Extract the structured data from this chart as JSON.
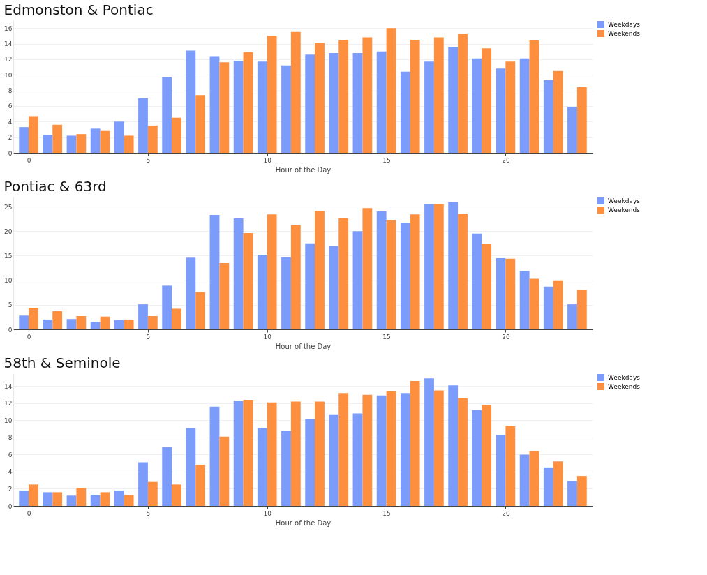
{
  "chart_data": [
    {
      "type": "bar",
      "title": "Edmonston & Pontiac",
      "xlabel": "Hour of the Day",
      "x": [
        0,
        1,
        2,
        3,
        4,
        5,
        6,
        7,
        8,
        9,
        10,
        11,
        12,
        13,
        14,
        15,
        16,
        17,
        18,
        19,
        20,
        21,
        22,
        23
      ],
      "xlim": [
        -0.5,
        23.5
      ],
      "xticks": [
        0,
        5,
        10,
        15,
        20
      ],
      "ylim": [
        0,
        17
      ],
      "yticks": [
        0,
        2,
        4,
        6,
        8,
        10,
        12,
        14,
        16
      ],
      "grid": "y",
      "legend": "top right",
      "series": [
        {
          "name": "Weekdays",
          "color": "#7b9cfb",
          "values": [
            3.3,
            2.3,
            2.2,
            3.1,
            4.0,
            7.0,
            9.7,
            13.1,
            12.4,
            11.8,
            11.7,
            11.2,
            12.6,
            12.8,
            12.8,
            13.0,
            10.4,
            11.7,
            13.6,
            12.1,
            10.8,
            12.1,
            9.3,
            5.9
          ]
        },
        {
          "name": "Weekends",
          "color": "#fd8f3e",
          "values": [
            4.7,
            3.6,
            2.4,
            2.8,
            2.2,
            3.5,
            4.5,
            7.4,
            11.6,
            12.9,
            15.0,
            15.5,
            14.1,
            14.5,
            14.8,
            16.0,
            14.5,
            14.8,
            15.2,
            13.4,
            11.7,
            14.4,
            10.5,
            8.4
          ]
        }
      ]
    },
    {
      "type": "bar",
      "title": "Pontiac & 63rd",
      "xlabel": "Hour of the Day",
      "x": [
        0,
        1,
        2,
        3,
        4,
        5,
        6,
        7,
        8,
        9,
        10,
        11,
        12,
        13,
        14,
        15,
        16,
        17,
        18,
        19,
        20,
        21,
        22,
        23
      ],
      "xlim": [
        -0.5,
        23.5
      ],
      "xticks": [
        0,
        5,
        10,
        15,
        20
      ],
      "ylim": [
        0,
        27
      ],
      "yticks": [
        0,
        5,
        10,
        15,
        20,
        25
      ],
      "grid": "y",
      "legend": "top right",
      "series": [
        {
          "name": "Weekdays",
          "color": "#7b9cfb",
          "values": [
            2.8,
            2.0,
            2.1,
            1.5,
            1.9,
            5.1,
            8.9,
            14.6,
            23.3,
            22.6,
            15.2,
            14.7,
            17.5,
            17.0,
            20.0,
            24.0,
            21.7,
            25.5,
            25.9,
            19.5,
            14.5,
            11.9,
            8.7,
            5.1
          ]
        },
        {
          "name": "Weekends",
          "color": "#fd8f3e",
          "values": [
            4.4,
            3.7,
            2.7,
            2.6,
            2.0,
            2.7,
            4.2,
            7.6,
            13.5,
            19.6,
            23.4,
            21.3,
            24.1,
            22.6,
            24.7,
            22.3,
            23.4,
            25.5,
            23.6,
            17.4,
            14.4,
            10.3,
            10.0,
            8.0
          ]
        }
      ]
    },
    {
      "type": "bar",
      "title": "58th & Seminole",
      "xlabel": "Hour of the Day",
      "x": [
        0,
        1,
        2,
        3,
        4,
        5,
        6,
        7,
        8,
        9,
        10,
        11,
        12,
        13,
        14,
        15,
        16,
        17,
        18,
        19,
        20,
        21,
        22,
        23
      ],
      "xlim": [
        -0.5,
        23.5
      ],
      "xticks": [
        0,
        5,
        10,
        15,
        20
      ],
      "ylim": [
        0,
        15.5
      ],
      "yticks": [
        0,
        2,
        4,
        6,
        8,
        10,
        12,
        14
      ],
      "grid": "y",
      "legend": "top right",
      "series": [
        {
          "name": "Weekdays",
          "color": "#7b9cfb",
          "values": [
            1.8,
            1.6,
            1.2,
            1.3,
            1.8,
            5.1,
            6.9,
            9.1,
            11.6,
            12.3,
            9.1,
            8.8,
            10.2,
            10.7,
            10.8,
            12.9,
            13.2,
            14.9,
            14.1,
            11.2,
            8.3,
            6.0,
            4.5,
            2.9
          ]
        },
        {
          "name": "Weekends",
          "color": "#fd8f3e",
          "values": [
            2.5,
            1.6,
            2.1,
            1.6,
            1.3,
            2.8,
            2.5,
            4.8,
            8.1,
            12.4,
            12.1,
            12.2,
            12.2,
            13.2,
            13.0,
            13.4,
            14.6,
            13.5,
            12.6,
            11.8,
            9.3,
            6.4,
            5.2,
            3.5
          ]
        }
      ]
    }
  ]
}
